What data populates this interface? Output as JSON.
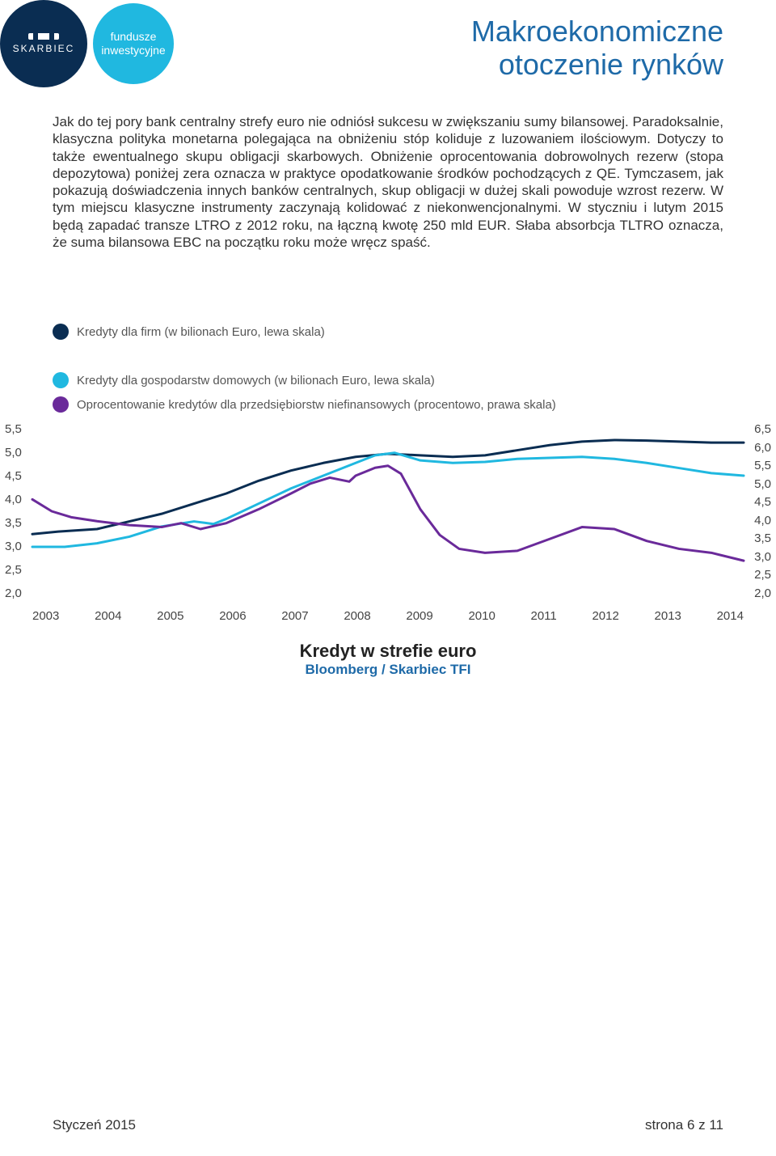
{
  "header": {
    "brand_text": "SKARBIEC",
    "sub_brand": "fundusze inwestycyjne",
    "title_line1": "Makroekonomiczne",
    "title_line2": "otoczenie rynków"
  },
  "body": {
    "paragraph": "Jak do tej pory bank centralny strefy euro nie odniósł sukcesu w zwiększaniu sumy bilansowej. Paradoksalnie, klasyczna polityka monetarna polegająca na obniżeniu stóp koliduje z luzowaniem ilościowym. Dotyczy to także ewentualnego skupu obligacji skarbowych. Obniżenie oprocentowania dobrowolnych rezerw (stopa depozytowa) poniżej zera oznacza w praktyce opodatkowanie środków pochodzących z QE. Tymczasem, jak pokazują doświadczenia innych banków centralnych, skup obligacji w dużej skali powoduje wzrost rezerw. W tym miejscu klasyczne instrumenty zaczynają kolidować z niekonwencjonalnymi. W styczniu i lutym 2015 będą zapadać transze LTRO z 2012 roku, na łączną kwotę 250 mld EUR. Słaba absorbcja TLTRO oznacza, że suma bilansowa EBC na początku roku może wręcz spaść."
  },
  "legend": {
    "item1": {
      "color": "#0a2d52",
      "label": "Kredyty dla firm (w bilionach Euro, lewa skala)"
    },
    "item2": {
      "color": "#20b8e0",
      "label": "Kredyty dla gospodarstw domowych (w bilionach Euro, lewa skala)"
    },
    "item3": {
      "color": "#6a2a9a",
      "label": "Oprocentowanie kredytów dla przedsiębiorstw niefinansowych (procentowo, prawa skala)"
    }
  },
  "chart": {
    "left_axis_labels": [
      "5,5",
      "5,0",
      "4,5",
      "4,0",
      "3,5",
      "3,0",
      "2,5",
      "2,0"
    ],
    "right_axis_labels": [
      "6,5",
      "6,0",
      "5,5",
      "5,0",
      "4,5",
      "4,0",
      "3,5",
      "3,0",
      "2,5",
      "2,0"
    ],
    "x_labels": [
      "2003",
      "2004",
      "2005",
      "2006",
      "2007",
      "2008",
      "2009",
      "2010",
      "2011",
      "2012",
      "2013",
      "2014"
    ],
    "left_ylim": [
      2.0,
      5.5
    ],
    "right_ylim": [
      2.0,
      6.5
    ],
    "x_range": [
      2003,
      2014
    ],
    "background_color": "#ffffff",
    "series": {
      "firms": {
        "color": "#0a2d52",
        "stroke_width": 3,
        "points": [
          [
            2003,
            3.3
          ],
          [
            2003.4,
            3.35
          ],
          [
            2004,
            3.4
          ],
          [
            2004.5,
            3.55
          ],
          [
            2005,
            3.7
          ],
          [
            2005.5,
            3.9
          ],
          [
            2006,
            4.1
          ],
          [
            2006.5,
            4.35
          ],
          [
            2007,
            4.55
          ],
          [
            2007.5,
            4.7
          ],
          [
            2008,
            4.82
          ],
          [
            2008.5,
            4.88
          ],
          [
            2009,
            4.85
          ],
          [
            2009.5,
            4.82
          ],
          [
            2010,
            4.85
          ],
          [
            2010.5,
            4.95
          ],
          [
            2011,
            5.05
          ],
          [
            2011.5,
            5.12
          ],
          [
            2012,
            5.15
          ],
          [
            2012.5,
            5.14
          ],
          [
            2013,
            5.12
          ],
          [
            2013.5,
            5.1
          ],
          [
            2014,
            5.1
          ]
        ]
      },
      "households": {
        "color": "#20b8e0",
        "stroke_width": 3,
        "points": [
          [
            2003,
            3.05
          ],
          [
            2003.5,
            3.05
          ],
          [
            2004,
            3.12
          ],
          [
            2004.5,
            3.25
          ],
          [
            2005,
            3.45
          ],
          [
            2005.5,
            3.55
          ],
          [
            2005.8,
            3.5
          ],
          [
            2006,
            3.6
          ],
          [
            2006.5,
            3.9
          ],
          [
            2007,
            4.2
          ],
          [
            2007.5,
            4.45
          ],
          [
            2008,
            4.7
          ],
          [
            2008.3,
            4.85
          ],
          [
            2008.6,
            4.9
          ],
          [
            2009,
            4.75
          ],
          [
            2009.5,
            4.7
          ],
          [
            2010,
            4.72
          ],
          [
            2010.5,
            4.78
          ],
          [
            2011,
            4.8
          ],
          [
            2011.5,
            4.82
          ],
          [
            2012,
            4.78
          ],
          [
            2012.5,
            4.7
          ],
          [
            2013,
            4.6
          ],
          [
            2013.5,
            4.5
          ],
          [
            2014,
            4.45
          ]
        ]
      },
      "rate": {
        "color": "#6a2a9a",
        "stroke_width": 3,
        "points": [
          [
            2003,
            4.55
          ],
          [
            2003.3,
            4.25
          ],
          [
            2003.6,
            4.1
          ],
          [
            2004,
            4.0
          ],
          [
            2004.5,
            3.9
          ],
          [
            2005,
            3.85
          ],
          [
            2005.3,
            3.95
          ],
          [
            2005.6,
            3.8
          ],
          [
            2006,
            3.95
          ],
          [
            2006.5,
            4.3
          ],
          [
            2007,
            4.7
          ],
          [
            2007.3,
            4.95
          ],
          [
            2007.6,
            5.1
          ],
          [
            2007.9,
            5.0
          ],
          [
            2008,
            5.15
          ],
          [
            2008.3,
            5.35
          ],
          [
            2008.5,
            5.4
          ],
          [
            2008.7,
            5.2
          ],
          [
            2009,
            4.3
          ],
          [
            2009.3,
            3.65
          ],
          [
            2009.6,
            3.3
          ],
          [
            2010,
            3.2
          ],
          [
            2010.5,
            3.25
          ],
          [
            2011,
            3.55
          ],
          [
            2011.5,
            3.85
          ],
          [
            2012,
            3.8
          ],
          [
            2012.5,
            3.5
          ],
          [
            2013,
            3.3
          ],
          [
            2013.5,
            3.2
          ],
          [
            2014,
            3.0
          ]
        ]
      }
    },
    "caption_title": "Kredyt w strefie euro",
    "caption_sub": "Bloomberg / Skarbiec TFI"
  },
  "footer": {
    "left": "Styczeń 2015",
    "right": "strona 6 z 11"
  }
}
